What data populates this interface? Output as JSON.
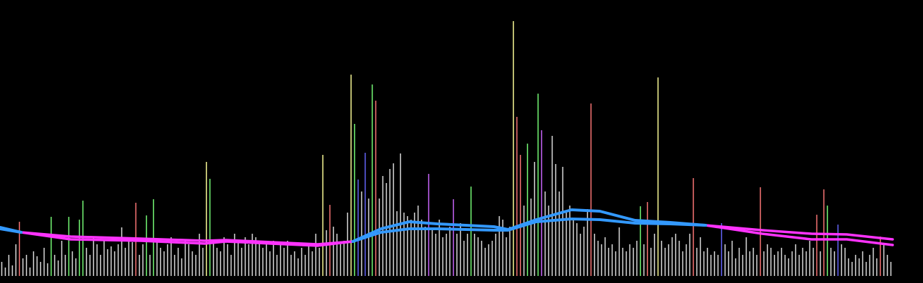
{
  "chart_data": {
    "type": "bar",
    "ylim": [
      0,
      392
    ],
    "xlim": [
      0,
      253
    ],
    "values": [
      20,
      12,
      30,
      15,
      45,
      77,
      25,
      30,
      12,
      35,
      28,
      20,
      40,
      18,
      84,
      30,
      22,
      50,
      30,
      84,
      35,
      25,
      80,
      107,
      40,
      30,
      55,
      45,
      30,
      50,
      38,
      42,
      35,
      45,
      69,
      40,
      55,
      48,
      104,
      30,
      45,
      86,
      30,
      109,
      50,
      40,
      35,
      45,
      55,
      30,
      40,
      25,
      50,
      45,
      35,
      30,
      60,
      40,
      162,
      138,
      50,
      40,
      35,
      55,
      45,
      30,
      60,
      50,
      40,
      55,
      45,
      60,
      55,
      50,
      40,
      45,
      35,
      50,
      30,
      45,
      40,
      50,
      30,
      35,
      25,
      40,
      30,
      45,
      35,
      60,
      40,
      172,
      65,
      101,
      70,
      60,
      45,
      50,
      90,
      286,
      216,
      137,
      120,
      175,
      110,
      272,
      249,
      110,
      142,
      132,
      152,
      160,
      92,
      174,
      90,
      85,
      80,
      90,
      100,
      80,
      70,
      145,
      65,
      60,
      80,
      55,
      60,
      70,
      109,
      60,
      75,
      50,
      60,
      127,
      60,
      55,
      50,
      40,
      45,
      50,
      60,
      85,
      80,
      55,
      70,
      362,
      226,
      172,
      100,
      188,
      110,
      162,
      259,
      207,
      120,
      100,
      199,
      159,
      120,
      155,
      90,
      100,
      80,
      75,
      60,
      70,
      95,
      245,
      60,
      50,
      45,
      55,
      40,
      45,
      35,
      69,
      40,
      35,
      45,
      40,
      50,
      99,
      45,
      105,
      40,
      60,
      282,
      50,
      40,
      45,
      55,
      60,
      50,
      35,
      45,
      60,
      139,
      40,
      55,
      35,
      40,
      30,
      35,
      30,
      75,
      45,
      35,
      50,
      25,
      40,
      30,
      55,
      35,
      40,
      30,
      126,
      35,
      45,
      40,
      30,
      35,
      40,
      30,
      25,
      35,
      45,
      30,
      40,
      35,
      50,
      40,
      87,
      35,
      123,
      100,
      40,
      35,
      73,
      45,
      40,
      25,
      20,
      30,
      25,
      35,
      20,
      30,
      40,
      25,
      56,
      45,
      30,
      20
    ],
    "bar_colors": [
      "#ddd",
      "#ddd",
      "#ddd",
      "#ddd",
      "#ddd",
      "#f77",
      "#ddd",
      "#ddd",
      "#ddd",
      "#ddd",
      "#ddd",
      "#ddd",
      "#ddd",
      "#ddd",
      "#7f7",
      "#ddd",
      "#ddd",
      "#ddd",
      "#ddd",
      "#7f7",
      "#ddd",
      "#ddd",
      "#7f7",
      "#7f7",
      "#ddd",
      "#ddd",
      "#ddd",
      "#ddd",
      "#ddd",
      "#ddd",
      "#ddd",
      "#ddd",
      "#ddd",
      "#ddd",
      "#ddd",
      "#ddd",
      "#ddd",
      "#ddd",
      "#f77",
      "#ddd",
      "#ddd",
      "#7f7",
      "#ddd",
      "#7f7",
      "#ddd",
      "#ddd",
      "#ddd",
      "#ddd",
      "#ddd",
      "#ddd",
      "#ddd",
      "#ddd",
      "#ddd",
      "#ddd",
      "#ddd",
      "#ddd",
      "#ddd",
      "#ddd",
      "#ff9",
      "#7f7",
      "#ddd",
      "#ddd",
      "#ddd",
      "#ddd",
      "#ddd",
      "#ddd",
      "#ddd",
      "#ddd",
      "#ddd",
      "#ddd",
      "#ddd",
      "#ddd",
      "#ddd",
      "#ddd",
      "#ddd",
      "#ddd",
      "#ddd",
      "#ddd",
      "#ddd",
      "#ddd",
      "#ddd",
      "#ddd",
      "#ddd",
      "#ddd",
      "#ddd",
      "#ddd",
      "#ddd",
      "#ddd",
      "#ddd",
      "#ddd",
      "#ddd",
      "#ff9",
      "#ddd",
      "#f77",
      "#ddd",
      "#ddd",
      "#ddd",
      "#ddd",
      "#ddd",
      "#ff9",
      "#7f7",
      "#66f",
      "#ddd",
      "#66f",
      "#ddd",
      "#7f7",
      "#f77",
      "#ddd",
      "#ddd",
      "#ddd",
      "#ddd",
      "#ddd",
      "#ddd",
      "#ddd",
      "#ddd",
      "#ddd",
      "#ddd",
      "#ddd",
      "#ddd",
      "#ddd",
      "#ddd",
      "#c6f",
      "#ddd",
      "#ddd",
      "#ddd",
      "#ddd",
      "#ddd",
      "#ddd",
      "#c6f",
      "#ddd",
      "#ddd",
      "#ddd",
      "#ddd",
      "#7f7",
      "#ddd",
      "#ddd",
      "#ddd",
      "#ddd",
      "#ddd",
      "#ddd",
      "#ddd",
      "#ddd",
      "#ddd",
      "#ddd",
      "#ddd",
      "#ff9",
      "#f77",
      "#f77",
      "#ddd",
      "#7f7",
      "#ddd",
      "#ddd",
      "#7f7",
      "#c6f",
      "#ddd",
      "#ddd",
      "#ddd",
      "#ddd",
      "#ddd",
      "#ddd",
      "#ddd",
      "#ddd",
      "#ddd",
      "#ddd",
      "#ddd",
      "#ddd",
      "#ddd",
      "#f77",
      "#ddd",
      "#ddd",
      "#ddd",
      "#ddd",
      "#ddd",
      "#ddd",
      "#ddd",
      "#ddd",
      "#ddd",
      "#ddd",
      "#ddd",
      "#ddd",
      "#ddd",
      "#7f7",
      "#ddd",
      "#f77",
      "#ddd",
      "#ddd",
      "#ff9",
      "#ddd",
      "#ddd",
      "#ddd",
      "#ddd",
      "#ddd",
      "#ddd",
      "#ddd",
      "#ddd",
      "#ddd",
      "#f77",
      "#ddd",
      "#ddd",
      "#ddd",
      "#ddd",
      "#ddd",
      "#ddd",
      "#ddd",
      "#66f",
      "#ddd",
      "#ddd",
      "#ddd",
      "#ddd",
      "#ddd",
      "#ddd",
      "#ddd",
      "#ddd",
      "#ddd",
      "#ddd",
      "#f77",
      "#ddd",
      "#ddd",
      "#ddd",
      "#ddd",
      "#ddd",
      "#ddd",
      "#ddd",
      "#ddd",
      "#ddd",
      "#ddd",
      "#ddd",
      "#ddd",
      "#ddd",
      "#ddd",
      "#ddd",
      "#f77",
      "#ddd",
      "#f77",
      "#7f7",
      "#ddd",
      "#ddd",
      "#66f",
      "#ddd",
      "#ddd",
      "#ddd",
      "#ddd",
      "#ddd",
      "#ddd",
      "#ddd",
      "#ddd",
      "#ddd",
      "#ddd",
      "#ddd",
      "#f77",
      "#ddd",
      "#ddd",
      "#ddd"
    ],
    "lines": [
      {
        "color": "#ff33ff",
        "width": 3.5,
        "x": [
          0,
          6,
          20,
          40,
          58,
          64,
          90,
          100,
          108,
          116,
          124,
          140,
          144,
          152,
          162,
          170,
          180,
          190,
          200,
          216,
          230,
          240,
          253
        ],
        "values": [
          null,
          62,
          56,
          53,
          50,
          51,
          45,
          49,
          null,
          null,
          null,
          null,
          null,
          null,
          null,
          null,
          null,
          null,
          72,
          65,
          60,
          59,
          52
        ]
      },
      {
        "color": "#ff33ff",
        "width": 3.5,
        "x": [
          0,
          6,
          20,
          40,
          58,
          64,
          90,
          100,
          108,
          116,
          124,
          140,
          144,
          152,
          162,
          170,
          180,
          190,
          200,
          216,
          230,
          240,
          253
        ],
        "values": [
          null,
          62,
          52,
          50,
          46,
          49,
          43,
          49,
          null,
          null,
          null,
          null,
          null,
          null,
          null,
          null,
          null,
          null,
          72,
          60,
          52,
          52,
          44
        ]
      },
      {
        "color": "#3399ff",
        "width": 4,
        "x": [
          0,
          6,
          20,
          40,
          58,
          64,
          90,
          100,
          108,
          116,
          124,
          140,
          144,
          152,
          162,
          170,
          180,
          190,
          200,
          216,
          230,
          240,
          253
        ],
        "values": [
          69,
          62,
          null,
          null,
          null,
          null,
          null,
          49,
          67,
          77,
          74,
          70,
          66,
          80,
          94,
          92,
          79,
          76,
          72,
          null,
          null,
          null,
          null
        ]
      },
      {
        "color": "#3399ff",
        "width": 4,
        "x": [
          0,
          6,
          20,
          40,
          58,
          64,
          90,
          100,
          108,
          116,
          124,
          140,
          144,
          152,
          162,
          170,
          180,
          190,
          200,
          216,
          230,
          240,
          253
        ],
        "values": [
          67,
          62,
          null,
          null,
          null,
          null,
          null,
          49,
          62,
          67,
          67,
          65,
          65,
          77,
          81,
          80,
          75,
          74,
          72,
          null,
          null,
          null,
          null
        ]
      }
    ]
  }
}
